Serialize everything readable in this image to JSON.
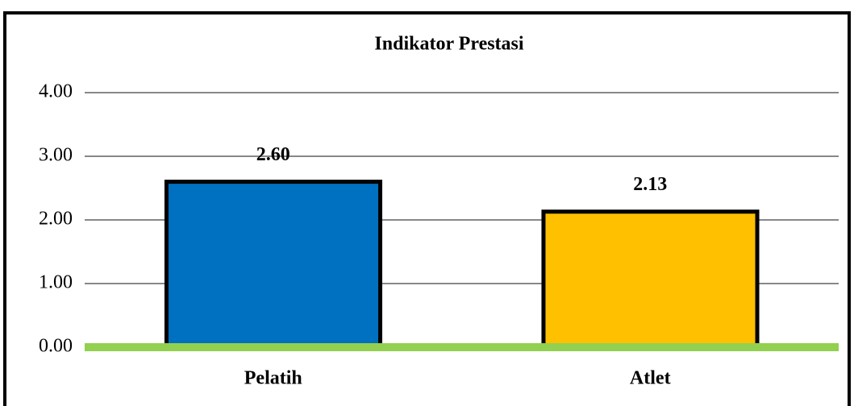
{
  "chart_data": {
    "type": "bar",
    "title": "Indikator Prestasi",
    "categories": [
      "Pelatih",
      "Atlet"
    ],
    "values": [
      2.6,
      2.13
    ],
    "value_labels": [
      "2.60",
      "2.13"
    ],
    "colors": [
      "#0070c0",
      "#ffc000"
    ],
    "baseline_color": "#92d050",
    "ylim": [
      0,
      4
    ],
    "yticks": [
      {
        "value": 0,
        "label": "0.00"
      },
      {
        "value": 1,
        "label": "1.00"
      },
      {
        "value": 2,
        "label": "2.00"
      },
      {
        "value": 3,
        "label": "3.00"
      },
      {
        "value": 4,
        "label": "4.00"
      }
    ],
    "grid": true
  }
}
